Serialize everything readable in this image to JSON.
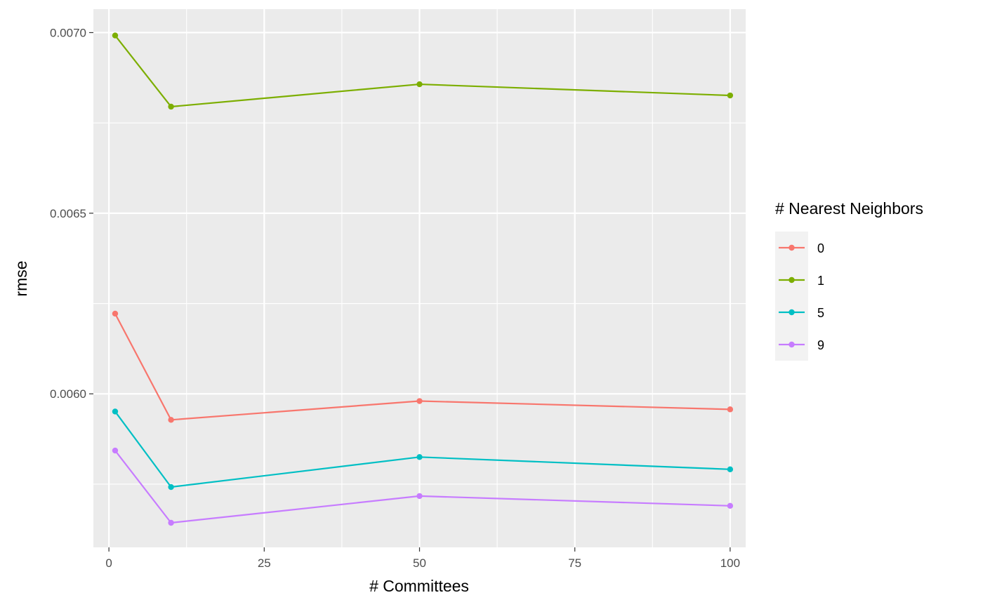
{
  "chart_data": {
    "type": "line",
    "xlabel": "# Committees",
    "ylabel": "rmse",
    "xlim": [
      -2.5,
      102.5
    ],
    "ylim": [
      0.005575,
      0.007065
    ],
    "x_ticks": [
      0,
      25,
      50,
      75,
      100
    ],
    "x_tick_labels": [
      "0",
      "25",
      "50",
      "75",
      "100"
    ],
    "x_minor_ticks": [
      12.5,
      37.5,
      62.5,
      87.5
    ],
    "y_ticks": [
      0.006,
      0.0065,
      0.007
    ],
    "y_tick_labels": [
      "0.0060",
      "0.0065",
      "0.0070"
    ],
    "y_minor_ticks": [
      0.00575,
      0.00625,
      0.00675
    ],
    "grid": true,
    "legend_title": "# Nearest Neighbors",
    "legend_position": "right",
    "x": [
      1,
      10,
      50,
      100
    ],
    "series": [
      {
        "name": "0",
        "color": "#F8766D",
        "values": [
          0.006222,
          0.005928,
          0.00598,
          0.005957
        ]
      },
      {
        "name": "1",
        "color": "#7CAE00",
        "values": [
          0.006992,
          0.006795,
          0.006857,
          0.006826
        ]
      },
      {
        "name": "5",
        "color": "#00BFC4",
        "values": [
          0.005951,
          0.005742,
          0.005825,
          0.005791
        ]
      },
      {
        "name": "9",
        "color": "#C77CFF",
        "values": [
          0.005843,
          0.005643,
          0.005717,
          0.00569
        ]
      }
    ]
  }
}
